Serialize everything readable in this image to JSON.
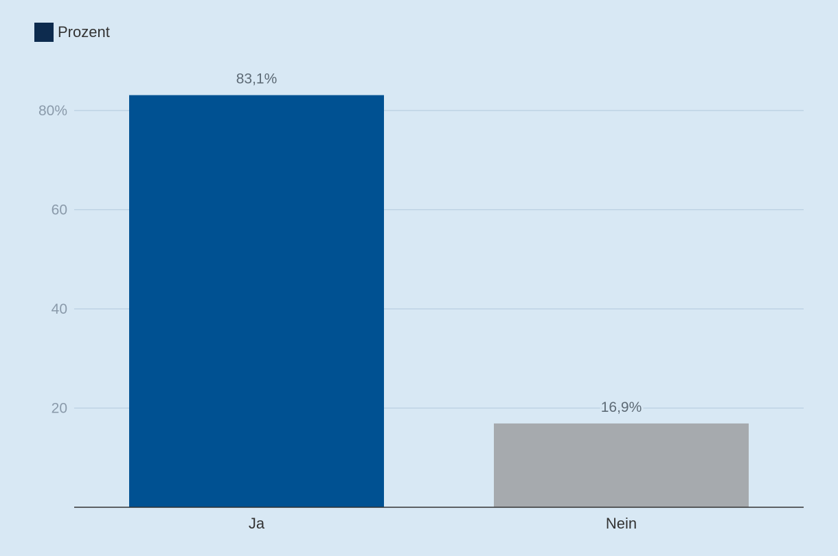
{
  "chart_data": {
    "type": "bar",
    "categories": [
      "Ja",
      "Nein"
    ],
    "series": [
      {
        "name": "Prozent",
        "values": [
          83.1,
          16.9
        ],
        "data_labels": [
          "83,1%",
          "16,9%"
        ]
      }
    ],
    "ylim": [
      0,
      90
    ],
    "yticks": [
      20,
      40,
      60,
      80
    ],
    "ytick_labels": [
      "20",
      "40",
      "60",
      "80%"
    ],
    "grid": true,
    "legend_position": "top-left",
    "colors": {
      "legend_swatch": "#0d2b4e",
      "bars": [
        "#005192",
        "#a6aaae"
      ],
      "background": "#d8e8f4",
      "gridline": "#b9cfe0",
      "axis": "#333333"
    }
  }
}
